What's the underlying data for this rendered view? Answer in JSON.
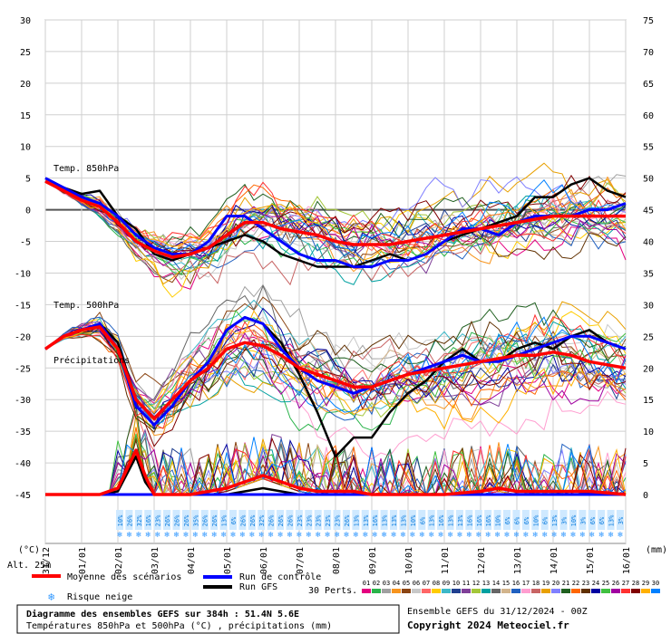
{
  "chart_data": {
    "type": "line",
    "left_axis_unit": "(°C)",
    "right_axis_unit": "(mm)",
    "left_ticks": [
      30,
      25,
      20,
      15,
      10,
      5,
      0,
      -5,
      -10,
      -15,
      -20,
      -25,
      -30,
      -35,
      -40,
      -45
    ],
    "right_ticks": [
      75,
      70,
      65,
      60,
      55,
      50,
      45,
      40,
      35,
      30,
      25,
      20,
      15,
      10,
      5,
      0
    ],
    "left_ylim": [
      -45,
      30
    ],
    "right_ylim": [
      0,
      75
    ],
    "x_labels": [
      "31/12",
      "01/01",
      "02/01",
      "03/01",
      "04/01",
      "05/01",
      "06/01",
      "07/01",
      "08/01",
      "09/01",
      "10/01",
      "11/01",
      "12/01",
      "13/01",
      "14/01",
      "15/01",
      "16/01"
    ],
    "x_range_days": [
      0,
      16
    ],
    "altitude_label": "Alt. 25m",
    "panel_labels": {
      "t850": "Temp. 850hPa",
      "t500": "Temp. 500hPa",
      "precip": "Précipitations"
    },
    "legend": {
      "mean": "Moyenne des scénarios",
      "control": "Run de contrôle",
      "gfs": "Run GFS",
      "snow": "Risque neige",
      "perts": "30 Perts."
    },
    "member_numbers": [
      "01",
      "02",
      "03",
      "04",
      "05",
      "06",
      "07",
      "08",
      "09",
      "10",
      "11",
      "12",
      "13",
      "14",
      "15",
      "16",
      "17",
      "18",
      "19",
      "20",
      "21",
      "22",
      "23",
      "24",
      "25",
      "26",
      "27",
      "28",
      "29",
      "30"
    ],
    "member_colors": [
      "#e4007f",
      "#2ab34a",
      "#a0a0a0",
      "#f7941d",
      "#8b4513",
      "#c8c8c8",
      "#ff6666",
      "#ffcc00",
      "#3cb8c8",
      "#1f3f8f",
      "#7f3f98",
      "#a3c639",
      "#00a0a0",
      "#666666",
      "#d2b48c",
      "#2060c0",
      "#ff9ed0",
      "#c86464",
      "#e8a000",
      "#8080ff",
      "#206020",
      "#ff6600",
      "#603000",
      "#0000a0",
      "#40c040",
      "#a000a0",
      "#ff3030",
      "#800000",
      "#ffb000",
      "#0080ff"
    ],
    "snow_risk_percent": [
      "10%",
      "26%",
      "32%",
      "16%",
      "23%",
      "26%",
      "26%",
      "26%",
      "35%",
      "26%",
      "26%",
      "13%",
      "6%",
      "26%",
      "26%",
      "32%",
      "26%",
      "26%",
      "26%",
      "23%",
      "23%",
      "23%",
      "23%",
      "23%",
      "26%",
      "13%",
      "13%",
      "16%",
      "13%",
      "13%",
      "13%",
      "10%",
      "6%",
      "13%",
      "16%",
      "13%",
      "13%",
      "16%",
      "16%",
      "16%",
      "10%",
      "6%",
      "6%",
      "6%",
      "10%",
      "6%",
      "13%",
      "3%",
      "10%",
      "3%",
      "6%",
      "6%",
      "13%",
      "3%"
    ],
    "series": {
      "t850_mean": [
        [
          0,
          4.5
        ],
        [
          0.5,
          3
        ],
        [
          1,
          1.5
        ],
        [
          1.5,
          0.5
        ],
        [
          2,
          -2
        ],
        [
          2.5,
          -5
        ],
        [
          3,
          -6.5
        ],
        [
          3.5,
          -7.5
        ],
        [
          4,
          -7
        ],
        [
          4.5,
          -6
        ],
        [
          5,
          -4
        ],
        [
          5.5,
          -2
        ],
        [
          6,
          -2
        ],
        [
          6.5,
          -3
        ],
        [
          7,
          -3.5
        ],
        [
          7.5,
          -4
        ],
        [
          8,
          -5
        ],
        [
          8.5,
          -5.5
        ],
        [
          9,
          -5.5
        ],
        [
          9.5,
          -5.5
        ],
        [
          10,
          -5
        ],
        [
          10.5,
          -4.5
        ],
        [
          11,
          -4
        ],
        [
          11.5,
          -3.5
        ],
        [
          12,
          -3
        ],
        [
          12.5,
          -2.5
        ],
        [
          13,
          -2
        ],
        [
          13.5,
          -1.5
        ],
        [
          14,
          -1
        ],
        [
          14.5,
          -1
        ],
        [
          15,
          -1
        ],
        [
          15.5,
          -1
        ],
        [
          16,
          -1
        ]
      ],
      "t850_control": [
        [
          0,
          5
        ],
        [
          0.5,
          3.5
        ],
        [
          1,
          2
        ],
        [
          1.5,
          1
        ],
        [
          2,
          -1
        ],
        [
          2.5,
          -4
        ],
        [
          3,
          -6
        ],
        [
          3.5,
          -7
        ],
        [
          4,
          -7
        ],
        [
          4.5,
          -5
        ],
        [
          5,
          -1
        ],
        [
          5.5,
          -1
        ],
        [
          6,
          -3
        ],
        [
          6.5,
          -5
        ],
        [
          7,
          -7
        ],
        [
          7.5,
          -8
        ],
        [
          8,
          -8
        ],
        [
          8.5,
          -9
        ],
        [
          9,
          -9
        ],
        [
          9.5,
          -8
        ],
        [
          10,
          -8
        ],
        [
          10.5,
          -7
        ],
        [
          11,
          -5
        ],
        [
          11.5,
          -3
        ],
        [
          12,
          -3
        ],
        [
          12.5,
          -4
        ],
        [
          13,
          -2
        ],
        [
          13.5,
          -1
        ],
        [
          14,
          -1
        ],
        [
          14.5,
          -1
        ],
        [
          15,
          0
        ],
        [
          15.5,
          0
        ],
        [
          16,
          1
        ]
      ],
      "t850_gfs": [
        [
          0,
          5
        ],
        [
          0.5,
          3.5
        ],
        [
          1,
          2.5
        ],
        [
          1.5,
          3
        ],
        [
          2,
          -1
        ],
        [
          2.5,
          -3
        ],
        [
          3,
          -7
        ],
        [
          3.5,
          -8
        ],
        [
          4,
          -7
        ],
        [
          4.5,
          -6
        ],
        [
          5,
          -5
        ],
        [
          5.5,
          -4
        ],
        [
          6,
          -5
        ],
        [
          6.5,
          -7
        ],
        [
          7,
          -8
        ],
        [
          7.5,
          -9
        ],
        [
          8,
          -9
        ],
        [
          8.5,
          -9
        ],
        [
          9,
          -8
        ],
        [
          9.5,
          -7
        ],
        [
          10,
          -8
        ],
        [
          10.5,
          -7
        ],
        [
          11,
          -5
        ],
        [
          11.5,
          -4
        ],
        [
          12,
          -3
        ],
        [
          12.5,
          -2
        ],
        [
          13,
          -1
        ],
        [
          13.5,
          2
        ],
        [
          14,
          2
        ],
        [
          14.5,
          4
        ],
        [
          15,
          5
        ],
        [
          15.5,
          3
        ],
        [
          16,
          2
        ]
      ],
      "t500_mean": [
        [
          0,
          -22
        ],
        [
          0.5,
          -20
        ],
        [
          1,
          -19
        ],
        [
          1.5,
          -18.5
        ],
        [
          2,
          -22
        ],
        [
          2.5,
          -30
        ],
        [
          3,
          -33
        ],
        [
          3.5,
          -30
        ],
        [
          4,
          -27
        ],
        [
          4.5,
          -25
        ],
        [
          5,
          -22
        ],
        [
          5.5,
          -21
        ],
        [
          6,
          -21.5
        ],
        [
          6.5,
          -23
        ],
        [
          7,
          -25
        ],
        [
          7.5,
          -26
        ],
        [
          8,
          -27
        ],
        [
          8.5,
          -28
        ],
        [
          9,
          -28
        ],
        [
          9.5,
          -27
        ],
        [
          10,
          -26
        ],
        [
          10.5,
          -25.5
        ],
        [
          11,
          -25
        ],
        [
          11.5,
          -24.5
        ],
        [
          12,
          -24
        ],
        [
          12.5,
          -23.5
        ],
        [
          13,
          -23
        ],
        [
          13.5,
          -23
        ],
        [
          14,
          -22.5
        ],
        [
          14.5,
          -23
        ],
        [
          15,
          -24
        ],
        [
          15.5,
          -24.5
        ],
        [
          16,
          -25
        ]
      ],
      "t500_control": [
        [
          0,
          -22
        ],
        [
          0.5,
          -20
        ],
        [
          1,
          -19
        ],
        [
          1.5,
          -18
        ],
        [
          2,
          -22
        ],
        [
          2.5,
          -31
        ],
        [
          3,
          -34
        ],
        [
          3.5,
          -31
        ],
        [
          4,
          -27
        ],
        [
          4.5,
          -24
        ],
        [
          5,
          -19
        ],
        [
          5.5,
          -17
        ],
        [
          6,
          -18
        ],
        [
          6.5,
          -22
        ],
        [
          7,
          -25
        ],
        [
          7.5,
          -27
        ],
        [
          8,
          -28
        ],
        [
          8.5,
          -29
        ],
        [
          9,
          -28
        ],
        [
          9.5,
          -27
        ],
        [
          10,
          -26
        ],
        [
          10.5,
          -25
        ],
        [
          11,
          -24
        ],
        [
          11.5,
          -23
        ],
        [
          12,
          -24
        ],
        [
          12.5,
          -24
        ],
        [
          13,
          -23
        ],
        [
          13.5,
          -22
        ],
        [
          14,
          -21
        ],
        [
          14.5,
          -20
        ],
        [
          15,
          -20
        ],
        [
          15.5,
          -21
        ],
        [
          16,
          -22
        ]
      ],
      "t500_gfs": [
        [
          0,
          -22
        ],
        [
          0.5,
          -20
        ],
        [
          1,
          -19
        ],
        [
          1.5,
          -18
        ],
        [
          2,
          -21
        ],
        [
          2.5,
          -30
        ],
        [
          3,
          -33
        ],
        [
          3.5,
          -30
        ],
        [
          4,
          -27
        ],
        [
          4.5,
          -24
        ],
        [
          5,
          -19
        ],
        [
          5.5,
          -17
        ],
        [
          6,
          -18
        ],
        [
          6.5,
          -21
        ],
        [
          7,
          -26
        ],
        [
          7.5,
          -32
        ],
        [
          8,
          -39
        ],
        [
          8.5,
          -36
        ],
        [
          9,
          -36
        ],
        [
          9.5,
          -32
        ],
        [
          10,
          -29
        ],
        [
          10.5,
          -27
        ],
        [
          11,
          -24
        ],
        [
          11.5,
          -22
        ],
        [
          12,
          -24
        ],
        [
          12.5,
          -24
        ],
        [
          13,
          -22
        ],
        [
          13.5,
          -21
        ],
        [
          14,
          -22
        ],
        [
          14.5,
          -20
        ],
        [
          15,
          -19
        ],
        [
          15.5,
          -21
        ],
        [
          16,
          -22
        ]
      ],
      "precip_mean_mm": [
        [
          0,
          0
        ],
        [
          1,
          0
        ],
        [
          1.5,
          0
        ],
        [
          2,
          1
        ],
        [
          2.5,
          7
        ],
        [
          2.75,
          3
        ],
        [
          3,
          0
        ],
        [
          3.5,
          0
        ],
        [
          4,
          0
        ],
        [
          4.5,
          0.5
        ],
        [
          5,
          1
        ],
        [
          5.5,
          2
        ],
        [
          6,
          3
        ],
        [
          6.5,
          2
        ],
        [
          7,
          1
        ],
        [
          7.5,
          0.5
        ],
        [
          8,
          0.5
        ],
        [
          8.5,
          0.5
        ],
        [
          9,
          0
        ],
        [
          10,
          0
        ],
        [
          11,
          0
        ],
        [
          12,
          0.5
        ],
        [
          12.5,
          1
        ],
        [
          13,
          0.5
        ],
        [
          14,
          0.5
        ],
        [
          15,
          0.5
        ],
        [
          16,
          0
        ]
      ],
      "precip_control_mm": [
        [
          0,
          0
        ],
        [
          1,
          0
        ],
        [
          1.5,
          0
        ],
        [
          2,
          0
        ],
        [
          2.5,
          0
        ],
        [
          3,
          0
        ],
        [
          4,
          0
        ],
        [
          5,
          0
        ],
        [
          6,
          0
        ],
        [
          7,
          0
        ],
        [
          8,
          0
        ],
        [
          9,
          0
        ],
        [
          10,
          0
        ],
        [
          11,
          0
        ],
        [
          12,
          0
        ],
        [
          13,
          0
        ],
        [
          14,
          0
        ],
        [
          15,
          0
        ],
        [
          16,
          0
        ]
      ],
      "precip_gfs_mm": [
        [
          0,
          0
        ],
        [
          1,
          0
        ],
        [
          1.5,
          0
        ],
        [
          2,
          0.5
        ],
        [
          2.5,
          6
        ],
        [
          2.75,
          2
        ],
        [
          3,
          0
        ],
        [
          3.5,
          0
        ],
        [
          4,
          0
        ],
        [
          5,
          0
        ],
        [
          6,
          1
        ],
        [
          7,
          0
        ],
        [
          8,
          0
        ],
        [
          9,
          0
        ],
        [
          10,
          0
        ],
        [
          11,
          0
        ],
        [
          12,
          0
        ],
        [
          13,
          0
        ],
        [
          14,
          0
        ],
        [
          15,
          0
        ],
        [
          16,
          0
        ]
      ]
    }
  },
  "footer": {
    "title": "Diagramme des ensembles GEFS sur 384h : 51.4N 5.6E",
    "subtitle": "Températures 850hPa et 500hPa (°C) , précipitations (mm)",
    "run": "Ensemble GEFS du 31/12/2024 - 00Z",
    "copyright": "Copyright 2024 Meteociel.fr"
  }
}
